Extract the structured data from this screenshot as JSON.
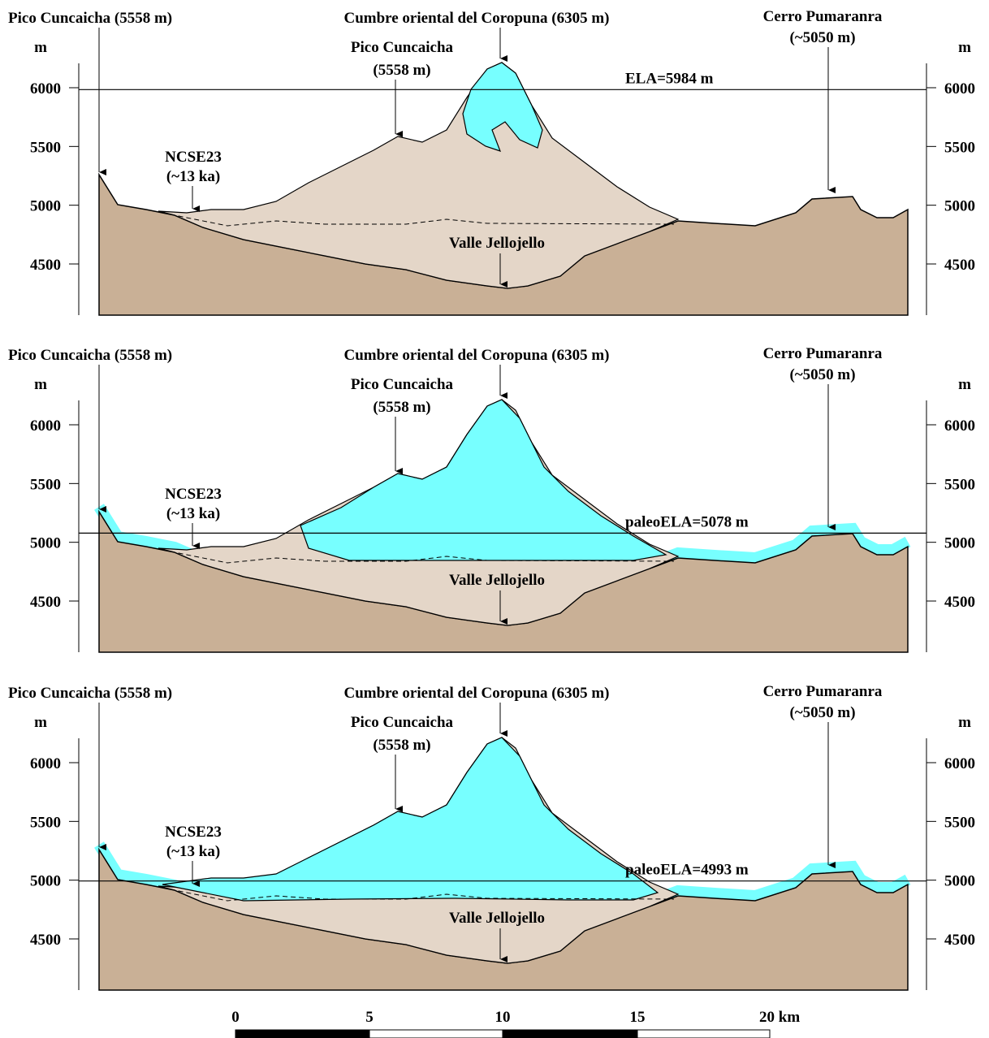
{
  "panels": [
    {
      "title_left": "Pico Cuncaicha (5558 m)",
      "title_center": "Cumbre oriental del Coropuna (6305 m)",
      "peak_label": [
        "Pico Cuncaicha",
        "(5558 m)"
      ],
      "right_label": [
        "Cerro Pumaranra",
        "(~5050 m)"
      ],
      "unit_left": "m",
      "unit_right": "m",
      "sample_label": [
        "NCSE23",
        "(~13 ka)"
      ],
      "valley_label": "Valle Jellojello",
      "ela_label": "ELA=5984 m",
      "elevation_ticks": [
        6000,
        5500,
        5000,
        4500
      ]
    },
    {
      "title_left": "Pico Cuncaicha (5558 m)",
      "title_center": "Cumbre oriental del Coropuna (6305 m)",
      "peak_label": [
        "Pico Cuncaicha",
        "(5558 m)"
      ],
      "right_label": [
        "Cerro Pumaranra",
        "(~5050 m)"
      ],
      "unit_left": "m",
      "unit_right": "m",
      "sample_label": [
        "NCSE23",
        "(~13 ka)"
      ],
      "valley_label": "Valle Jellojello",
      "ela_label": "paleoELA=5078 m",
      "elevation_ticks": [
        6000,
        5500,
        5000,
        4500
      ]
    },
    {
      "title_left": "Pico Cuncaicha (5558 m)",
      "title_center": "Cumbre oriental del Coropuna (6305 m)",
      "peak_label": [
        "Pico Cuncaicha",
        "(5558 m)"
      ],
      "right_label": [
        "Cerro Pumaranra",
        "(~5050 m)"
      ],
      "unit_left": "m",
      "unit_right": "m",
      "sample_label": [
        "NCSE23",
        "(~13 ka)"
      ],
      "valley_label": "Valle Jellojello",
      "ela_label": "paleoELA=4993 m",
      "elevation_ticks": [
        6000,
        5500,
        5000,
        4500
      ]
    }
  ],
  "scale_bar": {
    "labels": [
      "0",
      "5",
      "10",
      "15",
      "20 km"
    ]
  }
}
